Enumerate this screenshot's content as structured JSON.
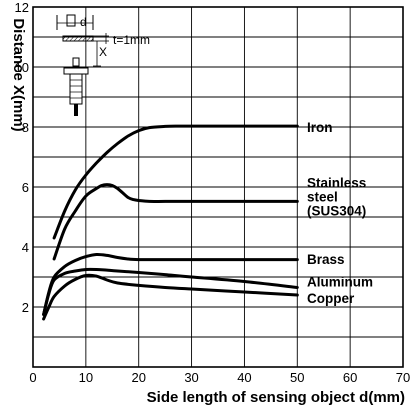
{
  "chart_data": {
    "type": "line",
    "xlabel": "Side length of sensing object d(mm)",
    "ylabel": "Distance X(mm)",
    "xlim": [
      0,
      70
    ],
    "ylim": [
      0,
      12
    ],
    "xticks": [
      0,
      10,
      20,
      30,
      40,
      50,
      60,
      70
    ],
    "yticks": [
      2,
      4,
      6,
      8,
      10,
      12
    ],
    "grid": true,
    "series": [
      {
        "name": "Iron",
        "x": [
          4,
          6,
          8,
          10,
          12,
          14,
          16,
          18,
          20,
          22,
          25,
          28,
          30,
          35,
          40,
          50
        ],
        "y": [
          4.3,
          5.2,
          5.9,
          6.4,
          6.8,
          7.15,
          7.45,
          7.7,
          7.88,
          7.98,
          8.02,
          8.03,
          8.03,
          8.03,
          8.03,
          8.03
        ]
      },
      {
        "name": "Stainless steel (SUS304)",
        "x": [
          4,
          6,
          8,
          10,
          12,
          13,
          14,
          15,
          16,
          17,
          18,
          19,
          20,
          22,
          25,
          30,
          40,
          50
        ],
        "y": [
          3.6,
          4.6,
          5.2,
          5.7,
          5.95,
          6.05,
          6.08,
          6.05,
          5.95,
          5.8,
          5.65,
          5.58,
          5.55,
          5.52,
          5.52,
          5.52,
          5.52,
          5.52
        ]
      },
      {
        "name": "Brass",
        "x": [
          2,
          3,
          4,
          6,
          8,
          10,
          12,
          14,
          16,
          18,
          20,
          25,
          30,
          40,
          50
        ],
        "y": [
          1.75,
          2.5,
          3.0,
          3.35,
          3.55,
          3.68,
          3.75,
          3.72,
          3.65,
          3.6,
          3.58,
          3.58,
          3.58,
          3.58,
          3.58
        ]
      },
      {
        "name": "Aluminum",
        "x": [
          2,
          3,
          4,
          6,
          8,
          10,
          12,
          14,
          16,
          20,
          25,
          30,
          40,
          50
        ],
        "y": [
          1.75,
          2.45,
          2.9,
          3.12,
          3.2,
          3.25,
          3.25,
          3.23,
          3.2,
          3.15,
          3.08,
          3.0,
          2.85,
          2.65
        ]
      },
      {
        "name": "Copper",
        "x": [
          2,
          3,
          4,
          6,
          8,
          10,
          12,
          14,
          16,
          20,
          25,
          30,
          40,
          50
        ],
        "y": [
          1.6,
          2.0,
          2.35,
          2.7,
          2.92,
          3.05,
          3.03,
          2.9,
          2.8,
          2.72,
          2.65,
          2.6,
          2.5,
          2.4
        ]
      }
    ],
    "labels": [
      {
        "lines": [
          "Iron"
        ],
        "anchor_y": 8.0
      },
      {
        "lines": [
          "Stainless",
          "steel",
          "(SUS304)"
        ],
        "anchor_y": 6.15
      },
      {
        "lines": [
          "Brass"
        ],
        "anchor_y": 3.6
      },
      {
        "lines": [
          "Aluminum"
        ],
        "anchor_y": 2.85
      },
      {
        "lines": [
          "Copper"
        ],
        "anchor_y": 2.3
      }
    ],
    "inset": {
      "d_label": "d",
      "x_label": "X",
      "t_label": "t=1mm"
    }
  }
}
